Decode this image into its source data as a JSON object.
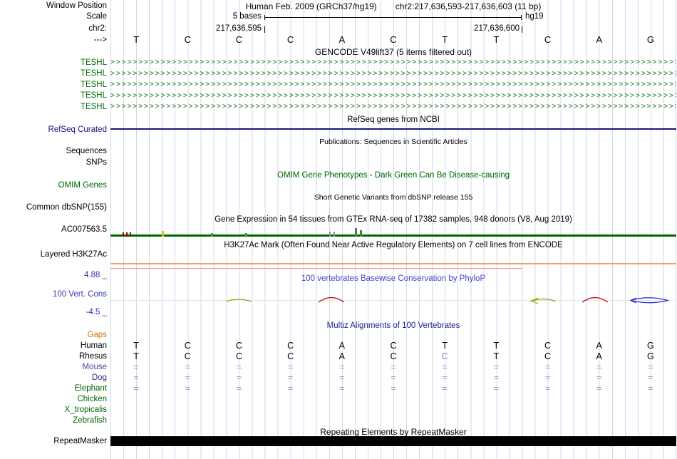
{
  "colors": {
    "green": "#007000",
    "omim": "#006400",
    "navy": "#16167e",
    "blue": "#3535b5",
    "blue_hdr": "#4242cc",
    "navy_hdr": "#22228c",
    "orange": "#cc7700"
  },
  "header": {
    "window_position_label": "Window Position",
    "assembly": "Human Feb. 2009 (GRCh37/hg19)",
    "position": "chr2:217,636,593-217,636,603 (11 bp)",
    "scale_label": "Scale",
    "scale_value": "5 bases",
    "assembly_short": "hg19",
    "chrom_label": "chr2:",
    "coord_left": "217,636,595",
    "coord_right": "217,636,600",
    "strand_arrow": "--->"
  },
  "ruler": {
    "bases": [
      "T",
      "C",
      "C",
      "C",
      "A",
      "C",
      "T",
      "T",
      "C",
      "A",
      "G"
    ]
  },
  "gencode": {
    "header": "GENCODE V49lift37 (5 items filtered out)",
    "arrow_char": ">",
    "items": [
      "TESHL",
      "TESHL",
      "TESHL",
      "TESHL",
      "TESHL"
    ]
  },
  "refseq": {
    "header": "RefSeq genes from NCBI",
    "label": "RefSeq Curated"
  },
  "publications": {
    "header": "Publications: Sequences in Scientific Articles",
    "sequences_label": "Sequences",
    "snps_label": "SNPs"
  },
  "omim": {
    "header": "OMIM Gene Phenotypes - Dark Green Can Be Disease-causing",
    "label": "OMIM Genes"
  },
  "dbsnp": {
    "header": "Short Genetic Variants from dbSNP release 155",
    "label": "Common dbSNP(155)"
  },
  "gtex": {
    "header": "Gene Expression in 54 tissues from GTEx RNA-seq of 17382 samples, 948 donors (V8, Aug 2019)",
    "label": "AC007563.5"
  },
  "h3k27ac": {
    "header": "H3K27Ac Mark (Often Found Near Active Regulatory Elements) on 7 cell lines from ENCODE",
    "label": "Layered H3K27Ac"
  },
  "conservation": {
    "header": "100 vertebrates Basewise Conservation by PhyloP",
    "label": "100 Vert. Cons",
    "max_label": "4.88 _",
    "min_label": "-4.5 _"
  },
  "alignment": {
    "header": "Multiz Alignments of 100 Vertebrates",
    "rows": [
      {
        "label": "Gaps",
        "label_color": "#cc7700",
        "cells": []
      },
      {
        "label": "Human",
        "label_color": "#000000",
        "cell_color": "#000000",
        "cells": [
          "T",
          "C",
          "C",
          "C",
          "A",
          "C",
          "T",
          "T",
          "C",
          "A",
          "G"
        ]
      },
      {
        "label": "Rhesus",
        "label_color": "#000000",
        "cell_color": "#000000",
        "cells": [
          "T",
          "C",
          "C",
          "C",
          "A",
          "C",
          {
            "ch": "C",
            "color": "#8888c4"
          },
          "T",
          "C",
          "A",
          "G"
        ]
      },
      {
        "label": "Mouse",
        "label_color": "#4848a0",
        "cell_color": "#9898bc",
        "cells": [
          "=",
          "=",
          "=",
          "=",
          "=",
          "=",
          "=",
          "=",
          "=",
          "=",
          "="
        ]
      },
      {
        "label": "Dog",
        "label_color": "#2d2d7a",
        "cell_color": "#9898bc",
        "cells": [
          "=",
          "=",
          "=",
          "=",
          "=",
          "=",
          "=",
          "=",
          "=",
          "=",
          "="
        ]
      },
      {
        "label": "Elephant",
        "label_color": "#006400",
        "cell_color": "#9898bc",
        "cells": [
          "=",
          "=",
          "=",
          "=",
          "=",
          "=",
          "=",
          "=",
          "=",
          "=",
          "="
        ]
      },
      {
        "label": "Chicken",
        "label_color": "#006400",
        "cells": []
      },
      {
        "label": "X_tropicalis",
        "label_color": "#006400",
        "cells": []
      },
      {
        "label": "Zebrafish",
        "label_color": "#006400",
        "cells": []
      }
    ]
  },
  "repeatmasker": {
    "header": "Repeating Elements by RepeatMasker",
    "label": "RepeatMasker"
  }
}
